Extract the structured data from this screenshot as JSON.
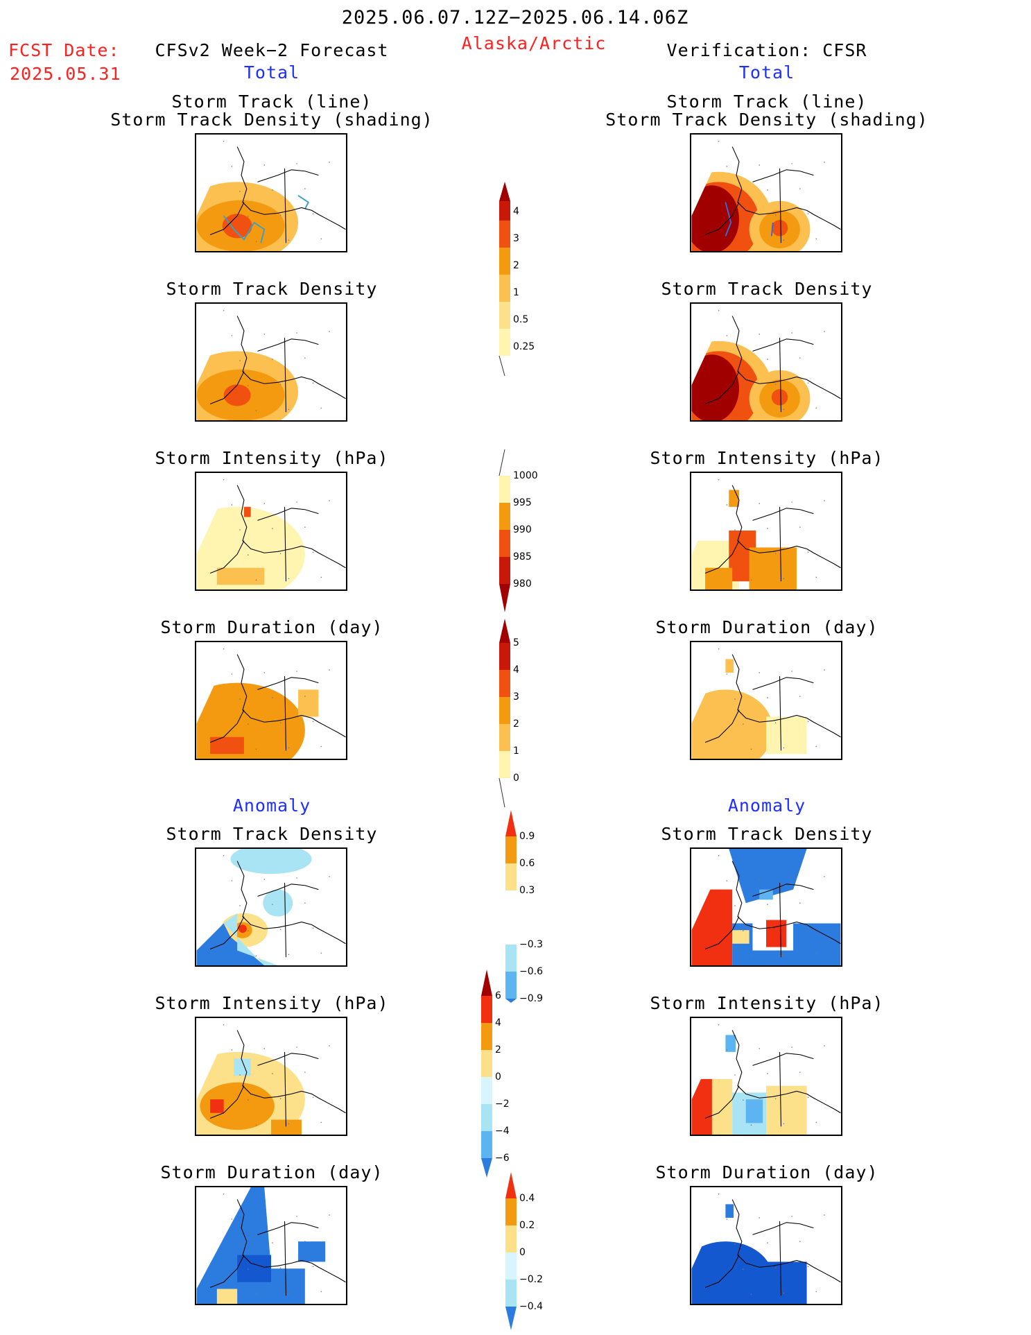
{
  "header": {
    "date_range": "2025.06.07.12Z−2025.06.14.06Z",
    "region": "Alaska/Arctic",
    "fcst_label": "FCST Date:",
    "fcst_date": "2025.05.31",
    "left_title": "CFSv2 Week−2 Forecast",
    "right_title": "Verification: CFSR",
    "left_sub": "Total",
    "right_sub": "Total"
  },
  "sections": {
    "anomaly_left": "Anomaly",
    "anomaly_right": "Anomaly"
  },
  "panel_titles": {
    "track_line": "Storm Track (line)",
    "track_shading": "Storm Track Density (shading)",
    "density": "Storm Track Density",
    "intensity": "Storm Intensity (hPa)",
    "duration": "Storm Duration (day)"
  },
  "colorbars": {
    "density_total": [
      "4",
      "3",
      "2",
      "1",
      "0.5",
      "0.25"
    ],
    "intensity_total": [
      "1000",
      "995",
      "990",
      "985",
      "980"
    ],
    "duration_total": [
      "5",
      "4",
      "3",
      "2",
      "1",
      "0"
    ],
    "density_anom": [
      "0.9",
      "0.6",
      "0.3",
      "−0.3",
      "−0.6",
      "−0.9"
    ],
    "intensity_anom": [
      "6",
      "4",
      "2",
      "0",
      "−2",
      "−4",
      "−6"
    ],
    "duration_anom": [
      "0.4",
      "0.2",
      "0",
      "−0.2",
      "−0.4"
    ]
  },
  "colors": {
    "title_red": "#ff2020",
    "title_blue": "#1f2fff",
    "warm": [
      "#fff5b0",
      "#fce08a",
      "#fbb040",
      "#f49a10",
      "#f06010",
      "#d02808",
      "#a00000"
    ],
    "cool": [
      "#d8f4fc",
      "#a8e4f4",
      "#5cb4f0",
      "#2c7ce0",
      "#1458d0"
    ]
  }
}
